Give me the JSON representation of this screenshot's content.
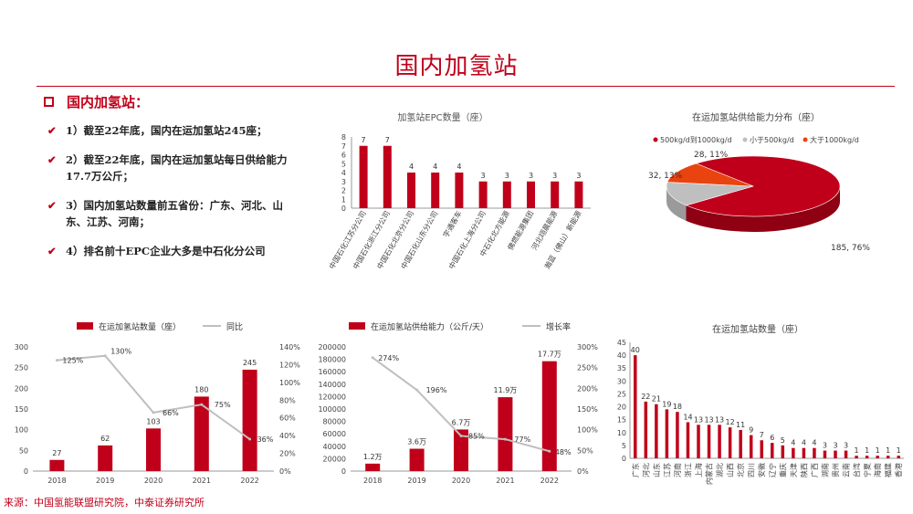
{
  "page": {
    "title": "国内加氢站",
    "section_title": "国内加氢站：",
    "bullets": [
      "1）截至22年底，国内在运加氢站245座；",
      "2）截至22年底，国内在运加氢站每日供给能力17.7万公斤；",
      "3）国内加氢站数量前五省份：广东、河北、山东、江苏、河南；",
      "4）排名前十EPC企业大多是中石化分公司"
    ],
    "source": "来源：中国氢能联盟研究院，中泰证券研究所"
  },
  "colors": {
    "accent": "#c0001a",
    "line": "#bfbfbf",
    "orange": "#e94310",
    "gray": "#bfbfbf"
  },
  "chart_data": [
    {
      "id": "epc",
      "type": "bar",
      "title": "加氢站EPC数量（座）",
      "categories": [
        "中国石化江苏分公司",
        "中国石化浙江分公司",
        "中国石化北京分公司",
        "中国石化山东分公司",
        "宇通客车",
        "中国石化上海分公司",
        "中石化北方能源",
        "佛燃能源集团",
        "河北翊晨能源",
        "瀚蓝（佛山）新能源"
      ],
      "values": [
        7,
        7,
        4,
        4,
        4,
        3,
        3,
        3,
        3,
        3
      ],
      "ylim": [
        0,
        8
      ],
      "yticks": [
        0,
        1,
        2,
        3,
        4,
        5,
        6,
        7,
        8
      ]
    },
    {
      "id": "supply_pie",
      "type": "pie",
      "title": "在运加氢站供给能力分布（座）",
      "legend": [
        "500kg/d到1000kg/d",
        "小于500kg/d",
        "大于1000kg/d"
      ],
      "values": [
        185,
        32,
        28
      ],
      "labels": [
        "185, 76%",
        "32, 13%",
        "28, 11%"
      ]
    },
    {
      "id": "count_trend",
      "type": "bar",
      "legend": [
        "在运加氢站数量（座）",
        "同比"
      ],
      "categories": [
        "2018",
        "2019",
        "2020",
        "2021",
        "2022"
      ],
      "values": [
        27,
        62,
        103,
        180,
        245
      ],
      "value_labels": [
        "27",
        "62",
        "103",
        "180",
        "245"
      ],
      "growth": [
        125,
        130,
        66,
        75,
        36
      ],
      "growth_labels": [
        "125%",
        "130%",
        "66%",
        "75%",
        "36%"
      ],
      "ylim": [
        0,
        300
      ],
      "yticks": [
        "0",
        "50",
        "100",
        "150",
        "200",
        "250",
        "300"
      ],
      "y2lim": [
        0,
        140
      ],
      "y2ticks": [
        "0%",
        "20%",
        "40%",
        "60%",
        "80%",
        "100%",
        "120%",
        "140%"
      ]
    },
    {
      "id": "capacity_trend",
      "type": "bar",
      "legend": [
        "在运加氢站供给能力（公斤/天）",
        "增长率"
      ],
      "categories": [
        "2018",
        "2019",
        "2020",
        "2021",
        "2022"
      ],
      "values": [
        12000,
        36000,
        67000,
        119000,
        177000
      ],
      "value_labels": [
        "1.2万",
        "3.6万",
        "6.7万",
        "11.9万",
        "17.7万"
      ],
      "growth": [
        274,
        196,
        85,
        77,
        48
      ],
      "growth_labels": [
        "274%",
        "196%",
        "85%",
        "77%",
        "48%"
      ],
      "ylim": [
        0,
        200000
      ],
      "yticks": [
        "0",
        "20000",
        "40000",
        "60000",
        "80000",
        "100000",
        "120000",
        "140000",
        "160000",
        "180000",
        "200000"
      ],
      "y2lim": [
        0,
        300
      ],
      "y2ticks": [
        "0%",
        "50%",
        "100%",
        "150%",
        "200%",
        "250%",
        "300%"
      ]
    },
    {
      "id": "province",
      "type": "bar",
      "title": "在运加氢站数量（座）",
      "categories": [
        "广东",
        "河北",
        "山东",
        "江苏",
        "河南",
        "浙江",
        "上海",
        "内蒙古",
        "湖北",
        "山西",
        "北京",
        "四川",
        "安徽",
        "辽宁",
        "重庆",
        "天津",
        "陕西",
        "广西",
        "湖南",
        "贵州",
        "云南",
        "台湾",
        "宁夏",
        "海南",
        "福建",
        "香港"
      ],
      "values": [
        40,
        22,
        21,
        19,
        18,
        14,
        13,
        13,
        13,
        12,
        11,
        9,
        7,
        6,
        5,
        4,
        4,
        4,
        3,
        3,
        3,
        1,
        1,
        1,
        1,
        1
      ],
      "ylim": [
        0,
        45
      ],
      "yticks": [
        0,
        5,
        10,
        15,
        20,
        25,
        30,
        35,
        40,
        45
      ]
    }
  ]
}
